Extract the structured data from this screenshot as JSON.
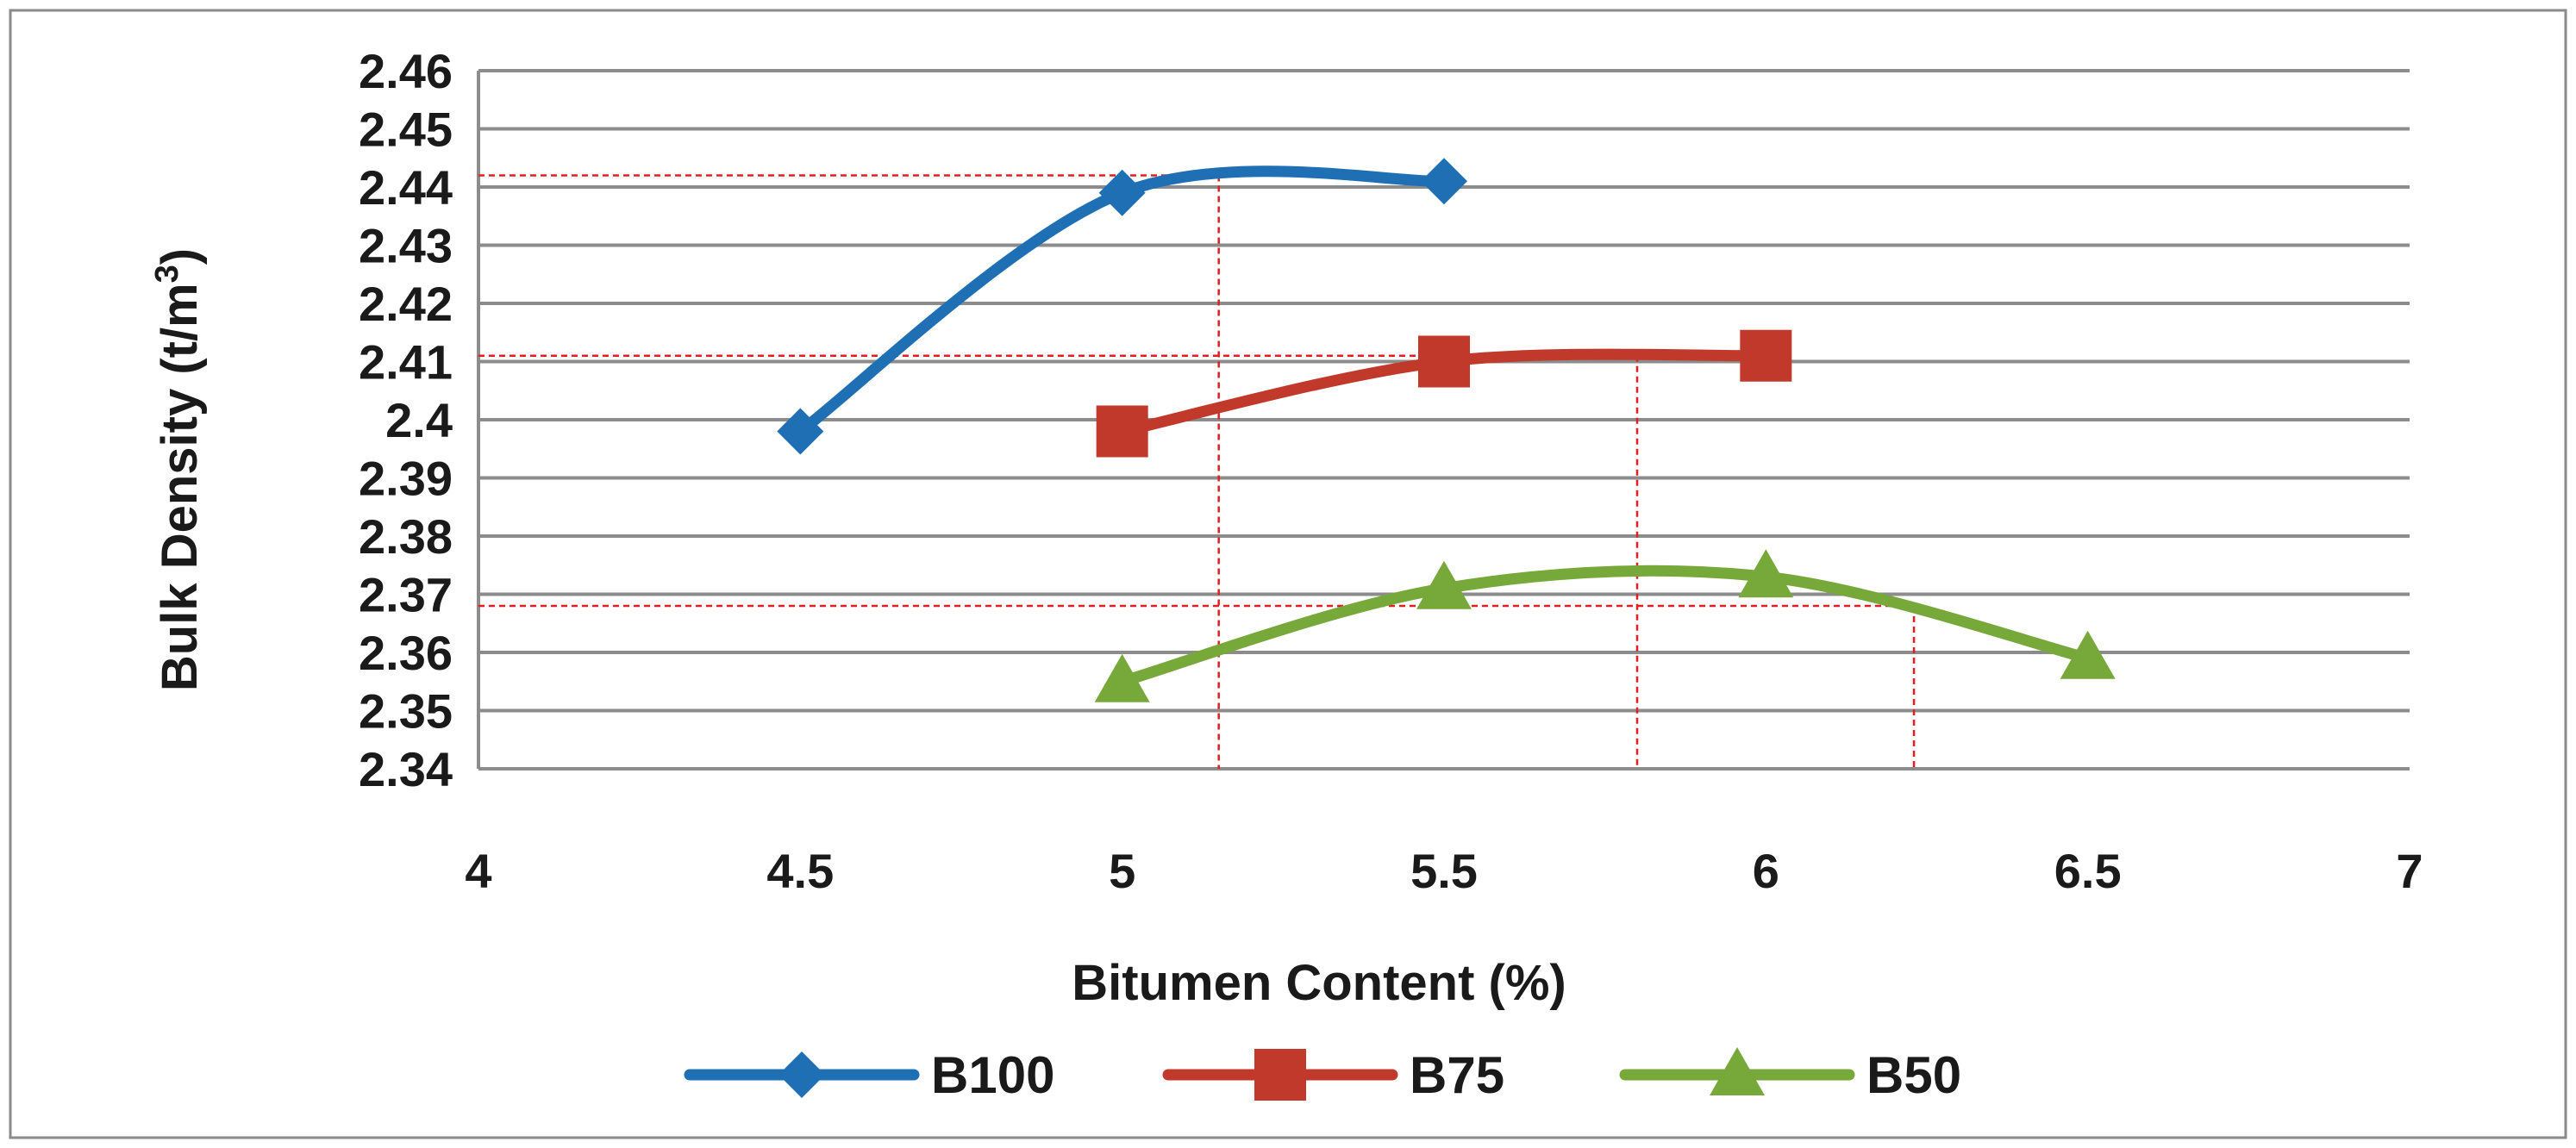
{
  "chart_data": {
    "type": "line",
    "xlabel": "Bitumen Content (%)",
    "ylabel_main": "Bulk Density (t/m",
    "ylabel_sup": "3",
    "ylabel_close": ")",
    "xlim": [
      4,
      7
    ],
    "ylim": [
      2.34,
      2.46
    ],
    "x_ticks": [
      4,
      4.5,
      5,
      5.5,
      6,
      6.5,
      7
    ],
    "x_tick_labels": [
      "4",
      "4.5",
      "5",
      "5.5",
      "6",
      "6.5",
      "7"
    ],
    "y_ticks": [
      2.34,
      2.35,
      2.36,
      2.37,
      2.38,
      2.39,
      2.4,
      2.41,
      2.42,
      2.43,
      2.44,
      2.45,
      2.46
    ],
    "y_tick_labels": [
      "2.34",
      "2.35",
      "2.36",
      "2.37",
      "2.38",
      "2.39",
      "2.4",
      "2.41",
      "2.42",
      "2.43",
      "2.44",
      "2.45",
      "2.46"
    ],
    "grid": "horizontal",
    "legend_position": "bottom",
    "series": [
      {
        "name": "B100",
        "color": "#1f6fb4",
        "marker": "diamond",
        "x": [
          4.5,
          5,
          5.5
        ],
        "y": [
          2.398,
          2.439,
          2.441
        ]
      },
      {
        "name": "B75",
        "color": "#c0392b",
        "marker": "square",
        "x": [
          5,
          5.5,
          6
        ],
        "y": [
          2.398,
          2.41,
          2.411
        ]
      },
      {
        "name": "B50",
        "color": "#77a83a",
        "marker": "triangle",
        "x": [
          5,
          5.5,
          6,
          6.5
        ],
        "y": [
          2.355,
          2.371,
          2.373,
          2.359
        ]
      }
    ],
    "reference_lines": [
      {
        "x": 5.15,
        "y": 2.442
      },
      {
        "x": 5.8,
        "y": 2.411
      },
      {
        "x": 6.23,
        "y": 2.368
      }
    ],
    "reference_line_color": "#e02020"
  }
}
